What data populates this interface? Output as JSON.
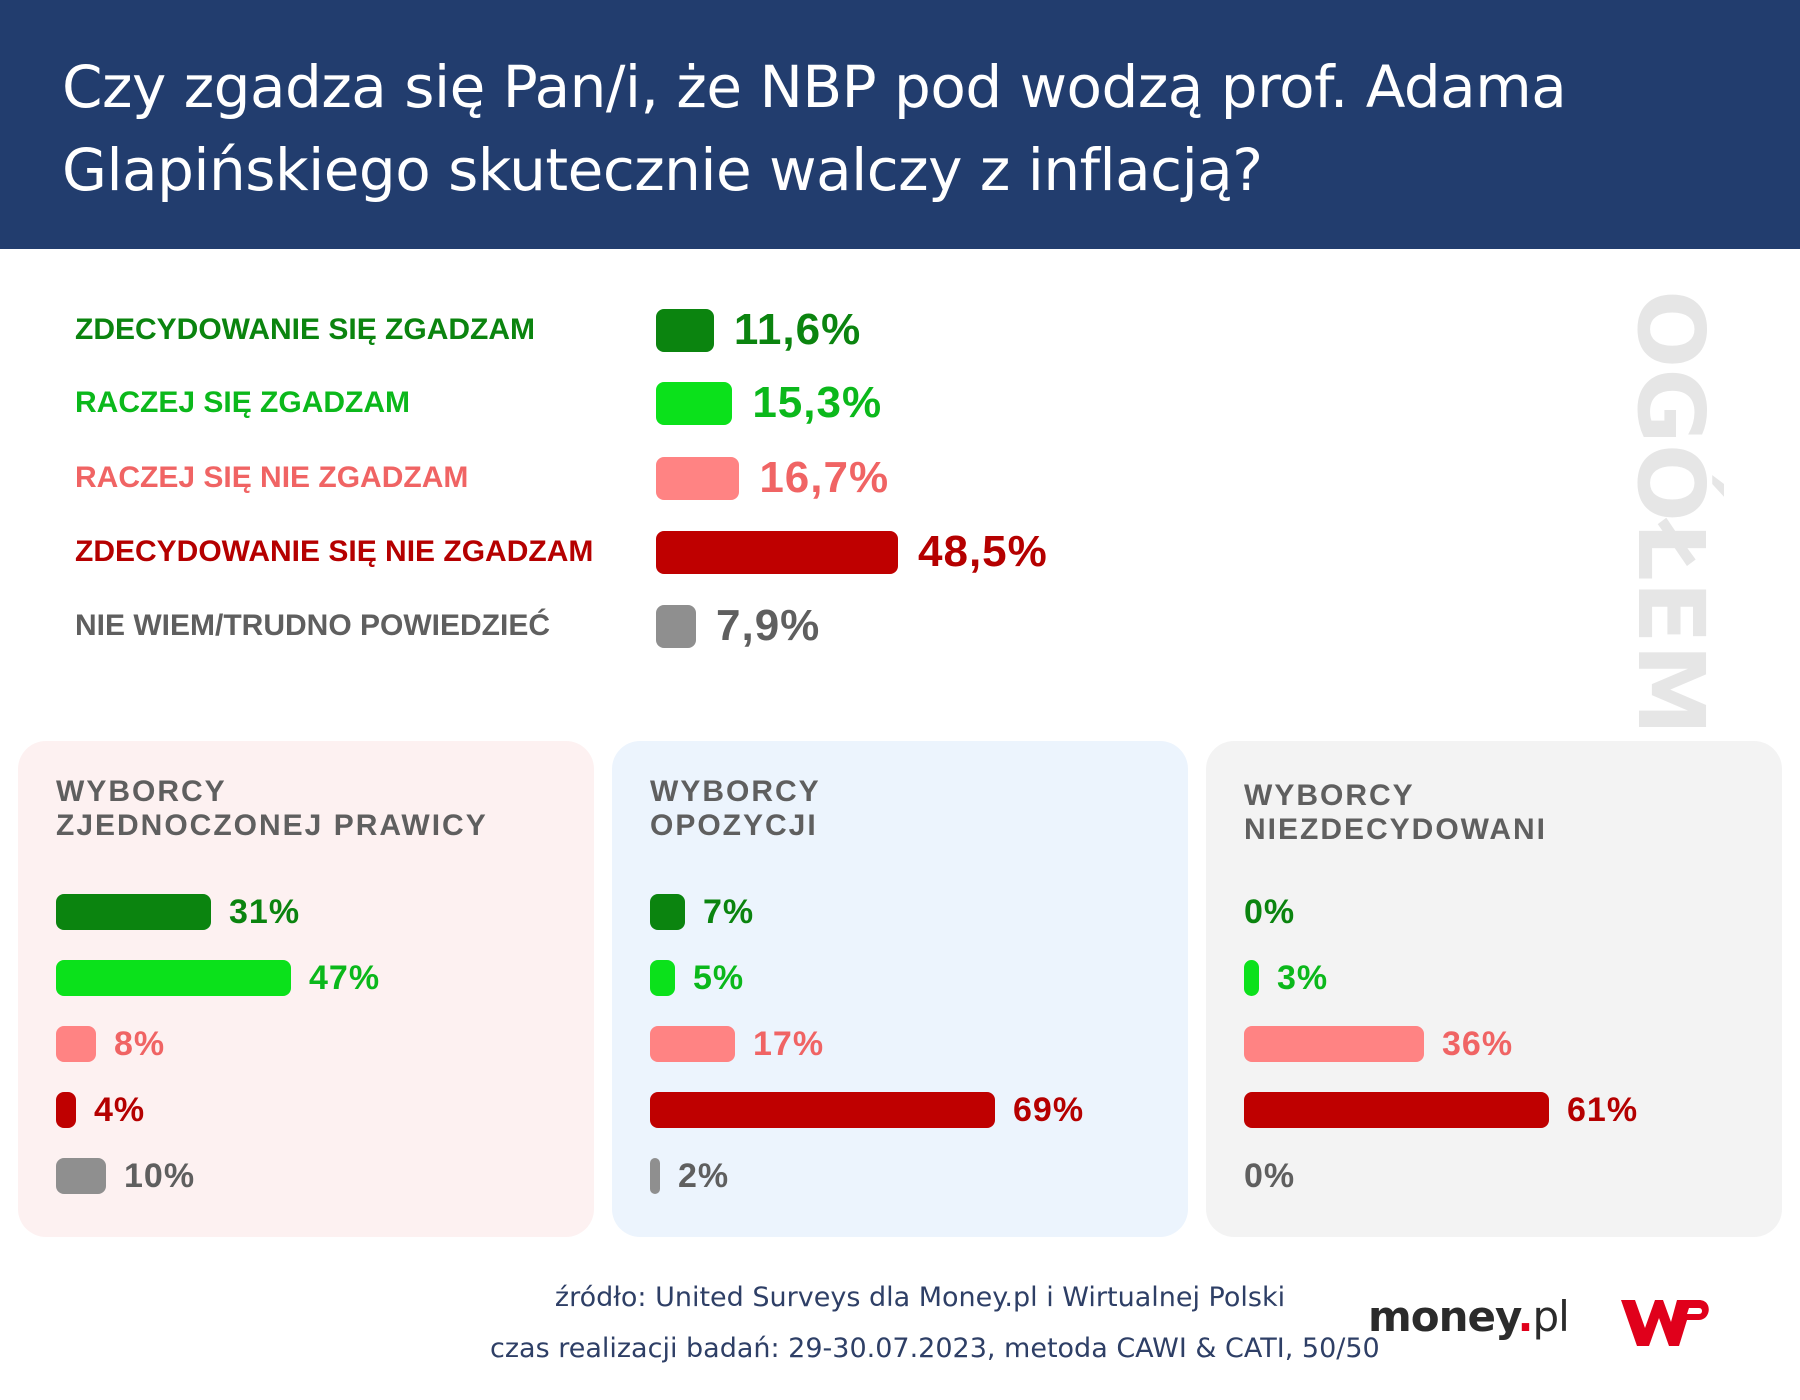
{
  "header": {
    "title": "Czy zgadza się Pan/i, że NBP pod wodzą prof. Adama Glapińskiego skutecznie walczy z inflacją?"
  },
  "side_label": "OGÓŁEM",
  "colors": {
    "header_bg": "#223d6e",
    "strong_agree": "#0b840f",
    "agree": "#0be11b",
    "disagree": "#ff8383",
    "strong_disagree": "#bf0000",
    "dont_know": "#8f8f8f",
    "panel_right": "#fdf1f1",
    "panel_opposition": "#ecf4fd",
    "panel_undecided": "#f3f3f3"
  },
  "chart_data": [
    {
      "type": "bar",
      "orientation": "horizontal",
      "title": "OGÓŁEM",
      "categories": [
        "ZDECYDOWANIE SIĘ ZGADZAM",
        "RACZEJ SIĘ ZGADZAM",
        "RACZEJ SIĘ NIE ZGADZAM",
        "ZDECYDOWANIE SIĘ NIE ZGADZAM",
        "NIE WIEM/TRUDNO POWIEDZIEĆ"
      ],
      "values": [
        11.6,
        15.3,
        16.7,
        48.5,
        7.9
      ],
      "value_labels": [
        "11,6%",
        "15,3%",
        "16,7%",
        "48,5%",
        "7,9%"
      ],
      "colors": [
        "#0b840f",
        "#0be11b",
        "#ff8383",
        "#bf0000",
        "#8f8f8f"
      ],
      "label_colors": [
        "#0b840f",
        "#0bb81b",
        "#f06464",
        "#b50000",
        "#5f5f5f"
      ]
    },
    {
      "type": "bar",
      "orientation": "horizontal",
      "title": "WYBORCY ZJEDNOCZONEJ PRAWICY",
      "title_lines": [
        "WYBORCY",
        "ZJEDNOCZONEJ PRAWICY"
      ],
      "values": [
        31,
        47,
        8,
        4,
        10
      ],
      "value_labels": [
        "31%",
        "47%",
        "8%",
        "4%",
        "10%"
      ]
    },
    {
      "type": "bar",
      "orientation": "horizontal",
      "title": "WYBORCY OPOZYCJI",
      "title_lines": [
        "WYBORCY",
        "OPOZYCJI"
      ],
      "values": [
        7,
        5,
        17,
        69,
        2
      ],
      "value_labels": [
        "7%",
        "5%",
        "17%",
        "69%",
        "2%"
      ]
    },
    {
      "type": "bar",
      "orientation": "horizontal",
      "title": "WYBORCY NIEZDECYDOWANI",
      "title_lines": [
        "WYBORCY",
        "NIEZDECYDOWANI"
      ],
      "values": [
        0,
        3,
        36,
        61,
        0
      ],
      "value_labels": [
        "0%",
        "3%",
        "36%",
        "61%",
        "0%"
      ]
    }
  ],
  "footer": {
    "source": "źródło: United Surveys dla Money.pl i Wirtualnej Polski",
    "method": "czas realizacji badań: 29-30.07.2023, metoda CAWI & CATI, 50/50"
  },
  "logos": {
    "money_main": "money",
    "money_dot": ".",
    "money_tld": "pl",
    "wp": "WP"
  }
}
